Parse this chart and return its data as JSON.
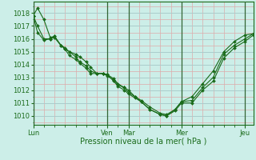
{
  "bg_color": "#cceee8",
  "grid_major_color": "#aacccc",
  "grid_minor_color": "#ddaaaa",
  "line_color": "#1a6b1a",
  "marker_color": "#1a6b1a",
  "spine_color": "#1a6b1a",
  "title": "Pression niveau de la mer( hPa )",
  "yticks": [
    1010,
    1011,
    1012,
    1013,
    1014,
    1015,
    1016,
    1017,
    1018
  ],
  "ylim": [
    1009.3,
    1018.9
  ],
  "xtick_labels": [
    "Lun",
    "Ven",
    "Mar",
    "Mer",
    "Jeu"
  ],
  "xtick_positions": [
    0,
    35,
    45,
    70,
    100
  ],
  "xmin": 0,
  "xmax": 104,
  "lines": [
    [
      0,
      1017.8,
      2,
      1018.4,
      5,
      1017.5,
      8,
      1016.1,
      10,
      1016.2,
      13,
      1015.5,
      15,
      1015.2,
      17,
      1015.0,
      20,
      1014.8,
      22,
      1014.6,
      25,
      1014.2,
      27,
      1013.8,
      30,
      1013.3,
      33,
      1013.3,
      35,
      1013.2,
      38,
      1012.9,
      40,
      1012.5,
      43,
      1012.2,
      45,
      1012.0,
      48,
      1011.5,
      51,
      1011.1,
      55,
      1010.5,
      60,
      1010.1,
      63,
      1010.0,
      67,
      1010.5,
      70,
      1011.1,
      75,
      1011.5,
      80,
      1012.5,
      85,
      1013.5,
      90,
      1015.0,
      95,
      1015.8,
      100,
      1016.3,
      104,
      1016.4
    ],
    [
      0,
      1017.8,
      2,
      1017.0,
      5,
      1016.0,
      8,
      1016.0,
      10,
      1016.1,
      13,
      1015.5,
      15,
      1015.2,
      17,
      1014.7,
      20,
      1014.4,
      22,
      1014.1,
      25,
      1013.7,
      27,
      1013.3,
      30,
      1013.3,
      33,
      1013.3,
      35,
      1013.1,
      38,
      1012.8,
      40,
      1012.4,
      43,
      1012.2,
      45,
      1011.8,
      48,
      1011.5,
      51,
      1011.2,
      55,
      1010.7,
      60,
      1010.2,
      63,
      1010.1,
      67,
      1010.5,
      70,
      1011.1,
      75,
      1011.2,
      80,
      1012.2,
      85,
      1013.0,
      90,
      1014.8,
      95,
      1015.5,
      100,
      1016.0,
      104,
      1016.4
    ],
    [
      0,
      1017.8,
      2,
      1016.5,
      5,
      1015.9,
      8,
      1016.0,
      10,
      1016.2,
      13,
      1015.5,
      15,
      1015.3,
      17,
      1015.0,
      20,
      1014.6,
      22,
      1014.2,
      25,
      1013.9,
      27,
      1013.5,
      30,
      1013.3,
      33,
      1013.3,
      35,
      1013.2,
      38,
      1012.7,
      40,
      1012.3,
      43,
      1012.0,
      45,
      1011.7,
      48,
      1011.4,
      51,
      1011.1,
      55,
      1010.5,
      60,
      1010.1,
      63,
      1010.0,
      67,
      1010.4,
      70,
      1011.0,
      75,
      1011.0,
      80,
      1012.0,
      85,
      1012.7,
      90,
      1014.5,
      95,
      1015.3,
      100,
      1015.8,
      104,
      1016.3
    ]
  ],
  "vline_positions": [
    0,
    35,
    45,
    70,
    100
  ],
  "vline_color": "#336633"
}
